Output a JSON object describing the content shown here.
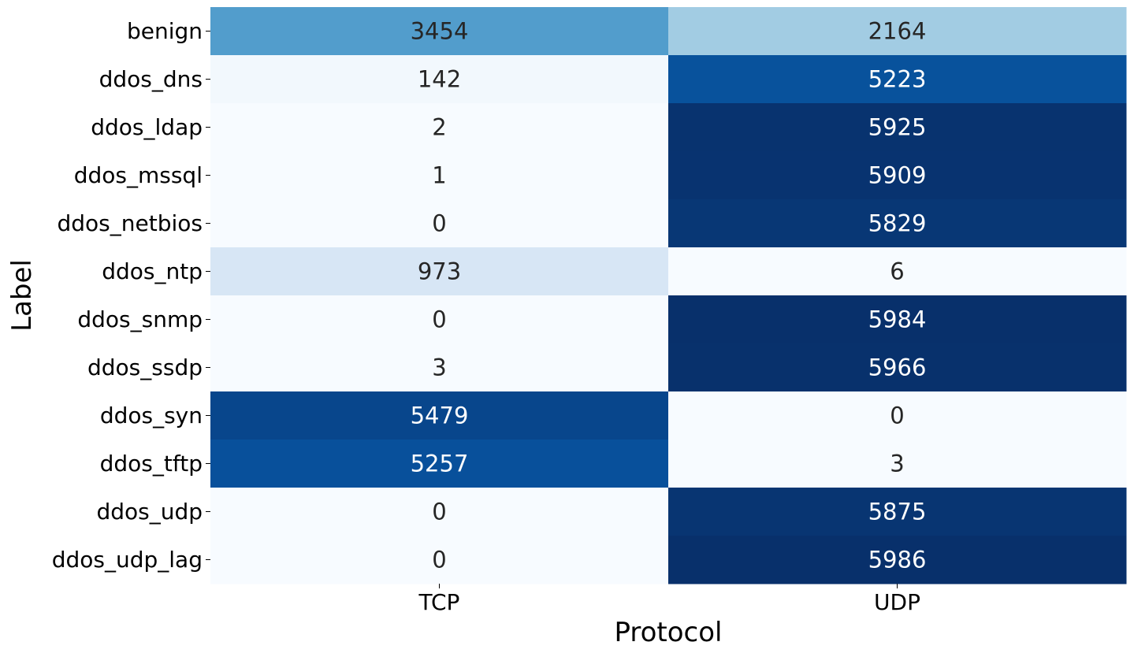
{
  "chart_data": {
    "type": "heatmap",
    "title": "",
    "xlabel": "Protocol",
    "ylabel": "Label",
    "x_categories": [
      "TCP",
      "UDP"
    ],
    "y_categories": [
      "benign",
      "ddos_dns",
      "ddos_ldap",
      "ddos_mssql",
      "ddos_netbios",
      "ddos_ntp",
      "ddos_snmp",
      "ddos_ssdp",
      "ddos_syn",
      "ddos_tftp",
      "ddos_udp",
      "ddos_udp_lag"
    ],
    "values": [
      [
        3454,
        2164
      ],
      [
        142,
        5223
      ],
      [
        2,
        5925
      ],
      [
        1,
        5909
      ],
      [
        0,
        5829
      ],
      [
        973,
        6
      ],
      [
        0,
        5984
      ],
      [
        3,
        5966
      ],
      [
        5479,
        0
      ],
      [
        5257,
        3
      ],
      [
        0,
        5875
      ],
      [
        0,
        5986
      ]
    ],
    "colormap": "Blues",
    "value_range": [
      0,
      5986
    ],
    "colorbar": false,
    "annotations": true
  }
}
